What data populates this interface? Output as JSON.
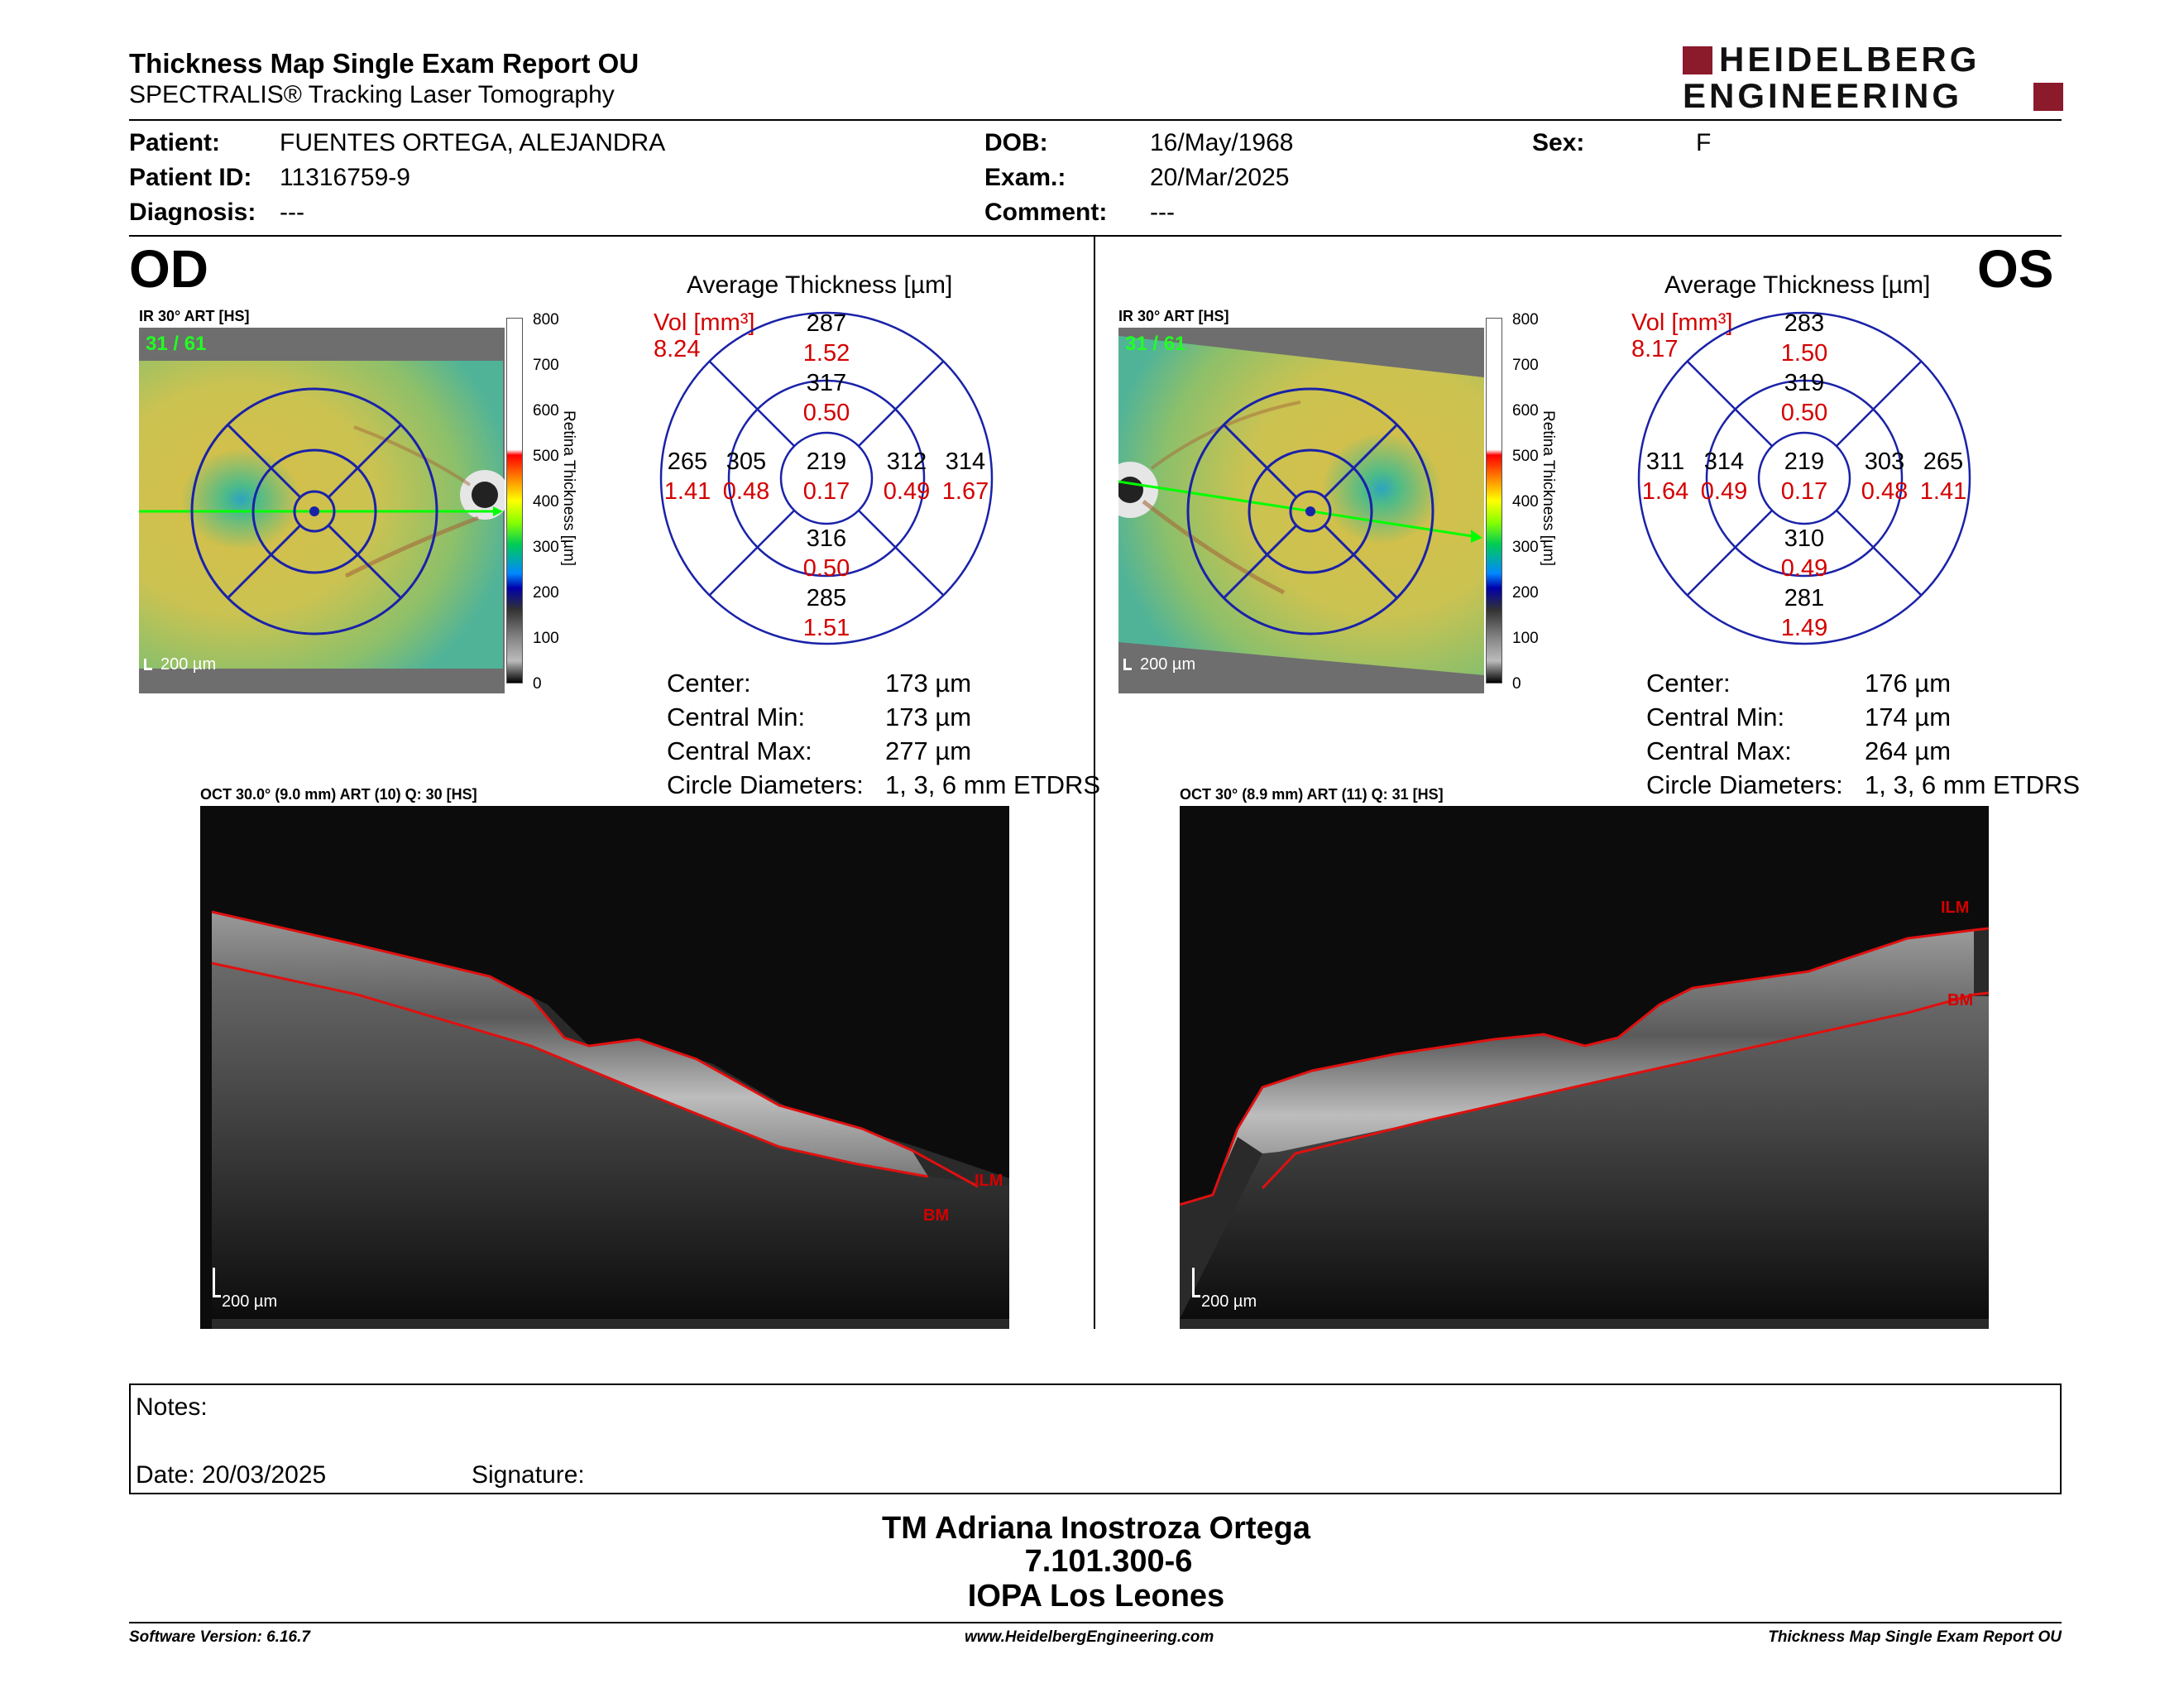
{
  "header": {
    "title": "Thickness Map Single Exam Report OU",
    "subtitle": "SPECTRALIS® Tracking Laser Tomography",
    "logo_line1": "HEIDELBERG",
    "logo_line2": "ENGINEERING"
  },
  "patient": {
    "patient_label": "Patient:",
    "patient_value": "FUENTES ORTEGA, ALEJANDRA",
    "id_label": "Patient ID:",
    "id_value": "11316759-9",
    "diagnosis_label": "Diagnosis:",
    "diagnosis_value": "---",
    "dob_label": "DOB:",
    "dob_value": "16/May/1968",
    "exam_label": "Exam.:",
    "exam_value": "20/Mar/2025",
    "comment_label": "Comment:",
    "comment_value": "---",
    "sex_label": "Sex:",
    "sex_value": "F"
  },
  "colorbar": {
    "ticks": [
      "800",
      "700",
      "600",
      "500",
      "400",
      "300",
      "200",
      "100",
      "0"
    ],
    "title": "Retina  Thickness [µm]"
  },
  "od": {
    "eye": "OD",
    "ir_label": "IR 30° ART [HS]",
    "ir_frames": "31 / 61",
    "scale": "200 µm",
    "avg_title": "Average Thickness [µm]",
    "vol_label": "Vol [mm³]",
    "vol_total": "8.24",
    "grid": {
      "outer_top": [
        "287",
        "1.52"
      ],
      "inner_top": [
        "317",
        "0.50"
      ],
      "outer_left": [
        "265",
        "1.41"
      ],
      "inner_left": [
        "305",
        "0.48"
      ],
      "center": [
        "219",
        "0.17"
      ],
      "inner_right": [
        "312",
        "0.49"
      ],
      "outer_right": [
        "314",
        "1.67"
      ],
      "inner_bottom": [
        "316",
        "0.50"
      ],
      "outer_bottom": [
        "285",
        "1.51"
      ]
    },
    "stats": {
      "center_label": "Center:",
      "center_value": "173 µm",
      "min_label": "Central Min:",
      "min_value": "173 µm",
      "max_label": "Central Max:",
      "max_value": "277 µm",
      "diam_label": "Circle Diameters:",
      "diam_value": "1, 3, 6 mm ETDRS"
    },
    "oct_label": "OCT 30.0° (9.0 mm) ART (10) Q: 30 [HS]",
    "ilm": "ILM",
    "bm": "BM"
  },
  "os": {
    "eye": "OS",
    "ir_label": "IR 30° ART [HS]",
    "ir_frames": "31 / 61",
    "scale": "200 µm",
    "avg_title": "Average Thickness [µm]",
    "vol_label": "Vol [mm³]",
    "vol_total": "8.17",
    "grid": {
      "outer_top": [
        "283",
        "1.50"
      ],
      "inner_top": [
        "319",
        "0.50"
      ],
      "outer_left": [
        "311",
        "1.64"
      ],
      "inner_left": [
        "314",
        "0.49"
      ],
      "center": [
        "219",
        "0.17"
      ],
      "inner_right": [
        "303",
        "0.48"
      ],
      "outer_right": [
        "265",
        "1.41"
      ],
      "inner_bottom": [
        "310",
        "0.49"
      ],
      "outer_bottom": [
        "281",
        "1.49"
      ]
    },
    "stats": {
      "center_label": "Center:",
      "center_value": "176 µm",
      "min_label": "Central Min:",
      "min_value": "174 µm",
      "max_label": "Central Max:",
      "max_value": "264 µm",
      "diam_label": "Circle Diameters:",
      "diam_value": "1, 3, 6 mm ETDRS"
    },
    "oct_label": "OCT 30° (8.9 mm) ART (11) Q: 31 [HS]",
    "ilm": "ILM",
    "bm": "BM"
  },
  "notes": {
    "notes_label": "Notes:",
    "date_label": "Date: 20/03/2025",
    "signature_label": "Signature:"
  },
  "signer": {
    "name": "TM Adriana Inostroza Ortega",
    "id": "7.101.300-6",
    "place": "IOPA Los Leones"
  },
  "footer": {
    "software": "Software Version: 6.16.7",
    "website": "www.HeidelbergEngineering.com",
    "report": "Thickness Map Single Exam Report OU"
  }
}
